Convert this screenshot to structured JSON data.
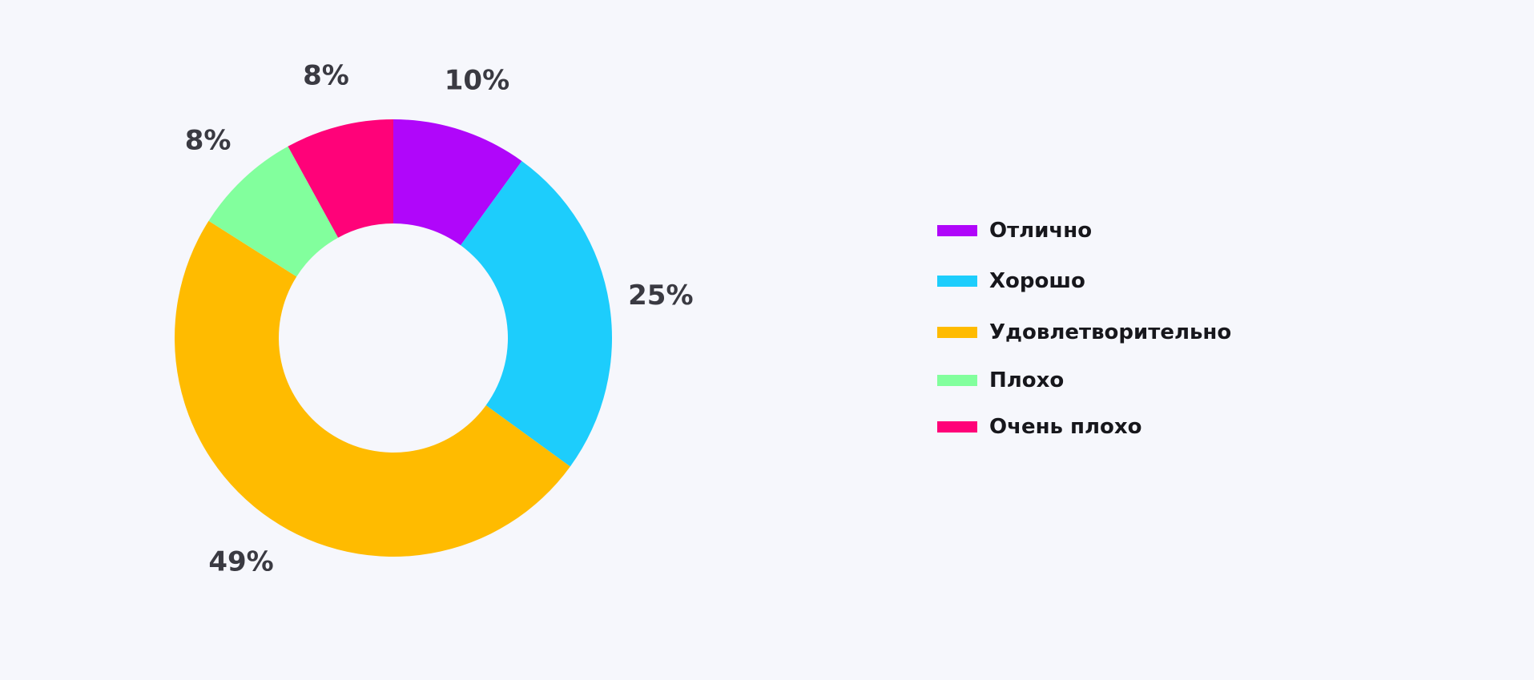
{
  "chart_data": {
    "type": "pie",
    "donut": true,
    "categories": [
      "Отлично",
      "Хорошо",
      "Удовлетворительно",
      "Плохо",
      "Очень плохо"
    ],
    "values": [
      10,
      25,
      49,
      8,
      8
    ],
    "value_labels": [
      "10%",
      "25%",
      "49%",
      "8%",
      "8%"
    ],
    "colors": [
      "#b006fa",
      "#1dcdfc",
      "#ffbb00",
      "#82ff9d",
      "#ff0279"
    ],
    "unit": "%",
    "legend_position": "right"
  }
}
